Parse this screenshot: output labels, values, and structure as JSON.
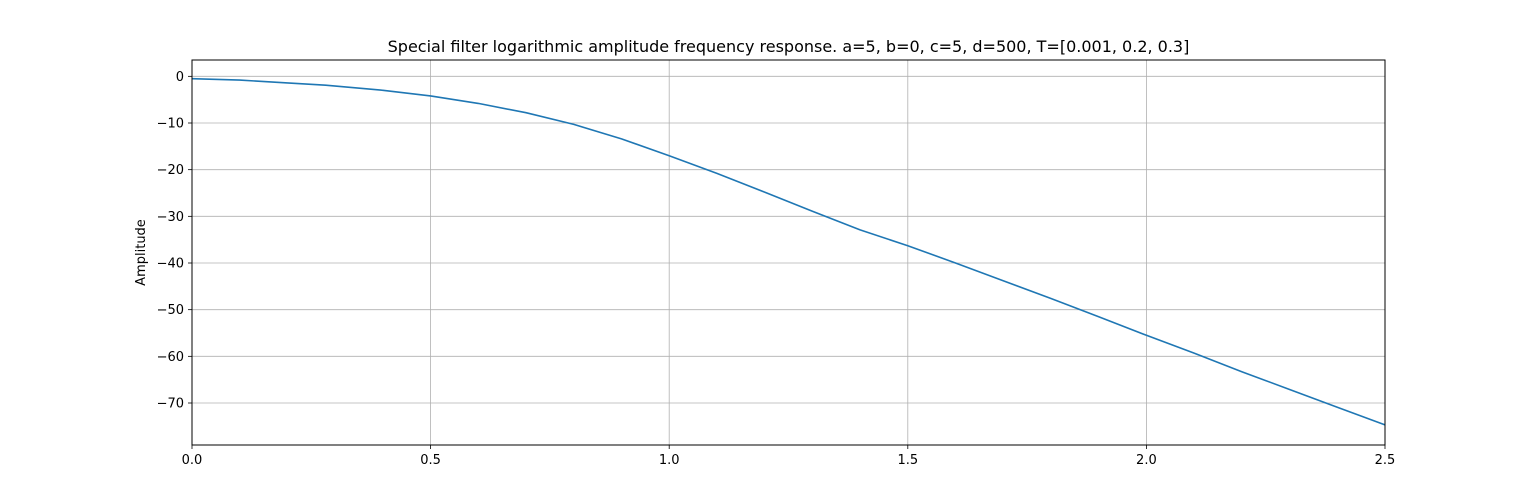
{
  "chart_data": {
    "type": "line",
    "title": "Special filter logarithmic amplitude frequency response. a=5, b=0, c=5, d=500, T=[0.001, 0.2, 0.3]",
    "xlabel": "",
    "ylabel": "Amplitude",
    "xlim": [
      0,
      2.5
    ],
    "ylim": [
      -79,
      3.5
    ],
    "grid": true,
    "legend": "none",
    "x_ticks": [
      0.0,
      0.5,
      1.0,
      1.5,
      2.0,
      2.5
    ],
    "x_tick_labels": [
      "0.0",
      "0.5",
      "1.0",
      "1.5",
      "2.0",
      "2.5"
    ],
    "y_ticks": [
      0,
      -10,
      -20,
      -30,
      -40,
      -50,
      -60,
      -70
    ],
    "y_tick_labels": [
      "0",
      "−10",
      "−20",
      "−30",
      "−40",
      "−50",
      "−60",
      "−70"
    ],
    "series": [
      {
        "color": "#1f77b4",
        "x": [
          0.0,
          0.1,
          0.2,
          0.28,
          0.4,
          0.5,
          0.6,
          0.7,
          0.8,
          0.9,
          1.0,
          1.1,
          1.2,
          1.3,
          1.4,
          1.5,
          1.6,
          1.7,
          1.8,
          1.9,
          2.0,
          2.1,
          2.2,
          2.3,
          2.4,
          2.5
        ],
        "y": [
          -0.5,
          -0.8,
          -1.4,
          -1.9,
          -3.0,
          -4.2,
          -5.8,
          -7.8,
          -10.3,
          -13.4,
          -17.0,
          -20.8,
          -24.8,
          -28.9,
          -32.9,
          -36.3,
          -40.0,
          -43.8,
          -47.6,
          -51.5,
          -55.5,
          -59.3,
          -63.3,
          -67.1,
          -70.9,
          -74.7
        ]
      }
    ]
  }
}
